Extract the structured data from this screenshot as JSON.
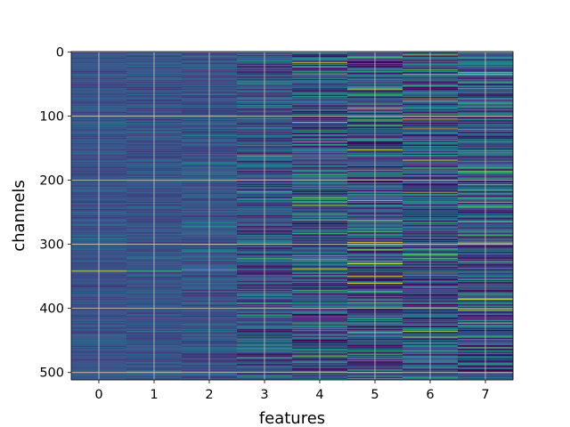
{
  "chart_data": {
    "type": "heatmap",
    "title": "",
    "xlabel": "features",
    "ylabel": "channels",
    "x_categories": [
      "0",
      "1",
      "2",
      "3",
      "4",
      "5",
      "6",
      "7"
    ],
    "y_ticks": [
      0,
      100,
      200,
      300,
      400,
      500
    ],
    "ylim": [
      511,
      0
    ],
    "rows": 512,
    "colormap": [
      "#440154",
      "#3b528b",
      "#21918c",
      "#5ec962",
      "#fde725"
    ],
    "grid": true,
    "grid_color": "#c8c8c8",
    "column_contrast": [
      0.16,
      0.18,
      0.22,
      0.42,
      0.55,
      0.62,
      0.58,
      0.6
    ],
    "highlights": [
      {
        "feature": 0,
        "channel": 342,
        "level": 1.0
      },
      {
        "feature": 1,
        "channel": 342,
        "level": 0.7
      },
      {
        "feature": 2,
        "channel": 340,
        "level": 0.7
      },
      {
        "feature": 4,
        "channel": 110,
        "level": 0.85
      },
      {
        "feature": 4,
        "channel": 140,
        "level": 0.8
      },
      {
        "feature": 5,
        "channel": 263,
        "level": 0.85
      },
      {
        "feature": 5,
        "channel": 280,
        "level": 0.8
      },
      {
        "feature": 6,
        "channel": 28,
        "level": 0.8
      },
      {
        "feature": 6,
        "channel": 105,
        "level": 0.95
      },
      {
        "feature": 6,
        "channel": 345,
        "level": 0.85
      },
      {
        "feature": 6,
        "channel": 436,
        "level": 0.9
      },
      {
        "feature": 7,
        "channel": 35,
        "level": 0.85
      },
      {
        "feature": 7,
        "channel": 298,
        "level": 1.0
      },
      {
        "feature": 7,
        "channel": 385,
        "level": 0.85
      }
    ]
  }
}
